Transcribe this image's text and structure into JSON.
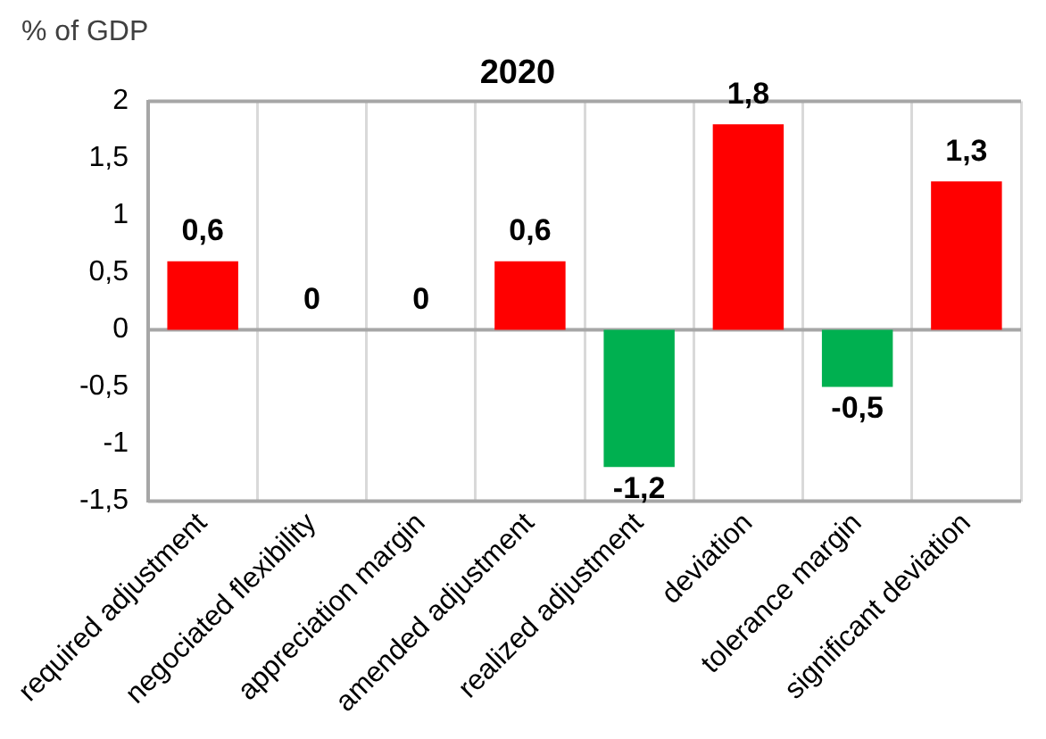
{
  "chart_data": {
    "type": "bar",
    "title": "2020",
    "ylabel": "% of GDP",
    "categories": [
      "required adjustment",
      "negociated flexibility",
      "appreciation margin",
      "amended adjustment",
      "realized adjustment",
      "deviation",
      "tolerance margin",
      "significant deviation"
    ],
    "values": [
      0.6,
      0,
      0,
      0.6,
      -1.2,
      1.8,
      -0.5,
      1.3
    ],
    "colors": [
      "#ff0000",
      "#ff0000",
      "#ff0000",
      "#ff0000",
      "#00b050",
      "#ff0000",
      "#00b050",
      "#ff0000"
    ],
    "value_labels": [
      "0,6",
      "0",
      "0",
      "0,6",
      "-1,2",
      "1,8",
      "-0,5",
      "1,3"
    ],
    "ylim": [
      -1.5,
      2
    ],
    "yticks": [
      {
        "value": -1.5,
        "label": "-1,5"
      },
      {
        "value": -1,
        "label": "-1"
      },
      {
        "value": -0.5,
        "label": "-0,5"
      },
      0,
      {
        "value": 0.5,
        "label": "0,5"
      },
      1,
      {
        "value": 1.5,
        "label": "1,5"
      },
      2
    ],
    "grid": "x",
    "legend": false
  }
}
